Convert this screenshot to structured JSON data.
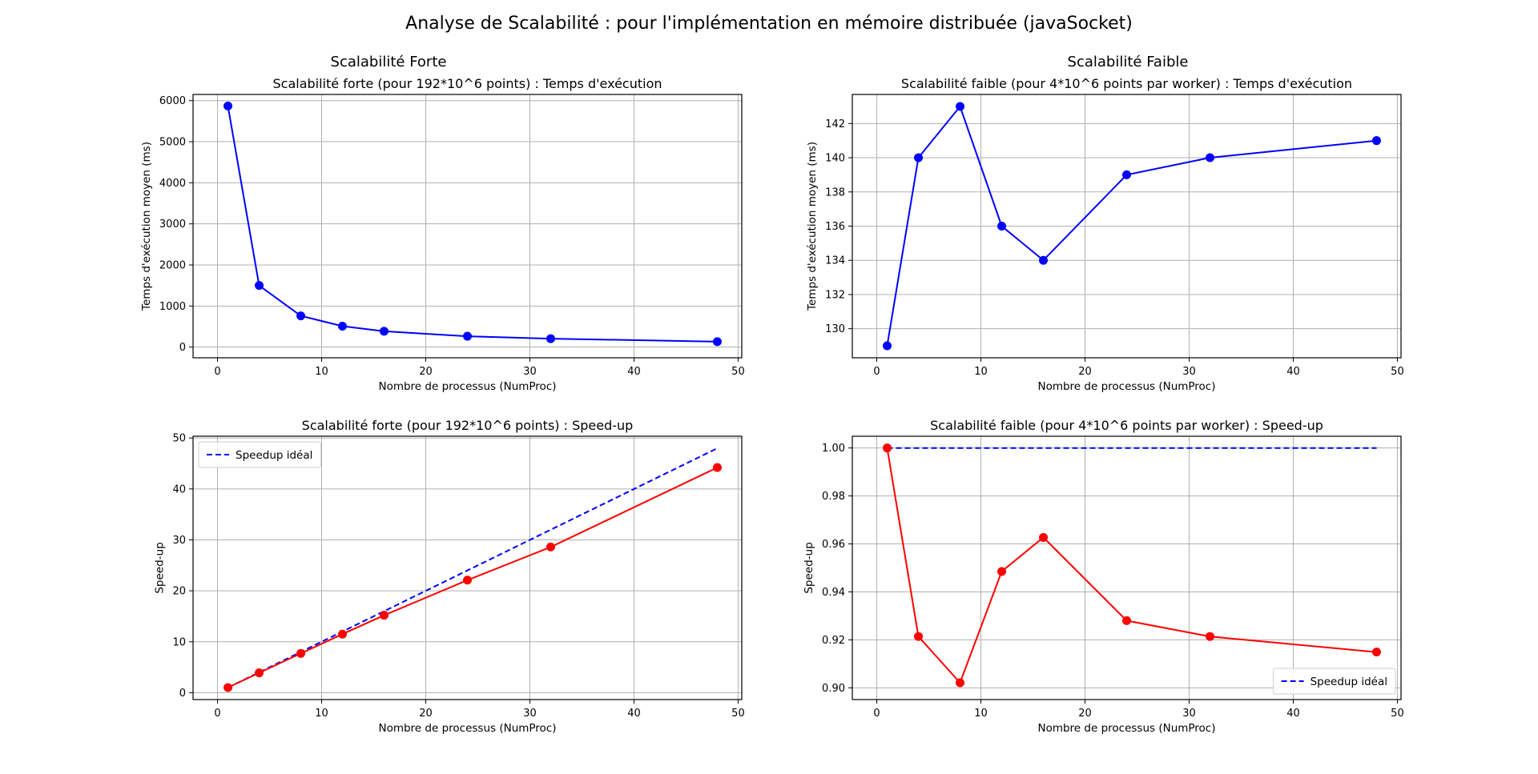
{
  "figure": {
    "title": "Analyse de Scalabilité : pour l'implémentation en mémoire distribuée (javaSocket)",
    "column_titles": [
      "Scalabilité Forte",
      "Scalabilité Faible"
    ]
  },
  "colors": {
    "measured_time": "#0000ff",
    "measured_speedup": "#ff0000",
    "ideal": "#0000ff",
    "grid": "#b0b0b0"
  },
  "chart_data": [
    {
      "id": "strong-time",
      "type": "line",
      "title": "Scalabilité forte (pour 192*10^6 points) : Temps d'exécution",
      "xlabel": "Nombre de processus (NumProc)",
      "ylabel": "Temps d'exécution moyen (ms)",
      "xlim": [
        -2.35,
        50.35
      ],
      "ylim": [
        -260,
        6150
      ],
      "xticks": [
        0,
        10,
        20,
        30,
        40,
        50
      ],
      "yticks": [
        0,
        1000,
        2000,
        3000,
        4000,
        5000,
        6000
      ],
      "grid": true,
      "legend": null,
      "series": [
        {
          "style": "solid-marker",
          "color": "#0000ff",
          "x": [
            1,
            4,
            8,
            12,
            16,
            24,
            32,
            48
          ],
          "y": [
            5870,
            1500,
            760,
            510,
            385,
            265,
            205,
            133
          ]
        }
      ]
    },
    {
      "id": "weak-time",
      "type": "line",
      "title": "Scalabilité faible (pour 4*10^6 points par worker) : Temps d'exécution",
      "xlabel": "Nombre de processus (NumProc)",
      "ylabel": "Temps d'exécution moyen (ms)",
      "xlim": [
        -2.35,
        50.35
      ],
      "ylim": [
        128.3,
        143.7
      ],
      "xticks": [
        0,
        10,
        20,
        30,
        40,
        50
      ],
      "yticks": [
        130,
        132,
        134,
        136,
        138,
        140,
        142
      ],
      "grid": true,
      "legend": null,
      "series": [
        {
          "style": "solid-marker",
          "color": "#0000ff",
          "x": [
            1,
            4,
            8,
            12,
            16,
            24,
            32,
            48
          ],
          "y": [
            129,
            140,
            143,
            136,
            134,
            139,
            140,
            141
          ]
        }
      ]
    },
    {
      "id": "strong-speedup",
      "type": "line",
      "title": "Scalabilité forte (pour 192*10^6 points) : Speed-up",
      "xlabel": "Nombre de processus (NumProc)",
      "ylabel": "Speed-up",
      "xlim": [
        -2.35,
        50.35
      ],
      "ylim": [
        -1.35,
        50.35
      ],
      "xticks": [
        0,
        10,
        20,
        30,
        40,
        50
      ],
      "yticks": [
        0,
        10,
        20,
        30,
        40,
        50
      ],
      "grid": true,
      "legend": "upper left",
      "series": [
        {
          "name": "Speedup idéal",
          "style": "dashed",
          "color": "#0000ff",
          "x": [
            1,
            4,
            8,
            12,
            16,
            24,
            32,
            48
          ],
          "y": [
            1,
            4,
            8,
            12,
            16,
            24,
            32,
            48
          ]
        },
        {
          "style": "solid-marker",
          "color": "#ff0000",
          "x": [
            1,
            4,
            8,
            12,
            16,
            24,
            32,
            48
          ],
          "y": [
            1.0,
            3.9,
            7.7,
            11.5,
            15.2,
            22.1,
            28.6,
            44.2
          ]
        }
      ]
    },
    {
      "id": "weak-speedup",
      "type": "line",
      "title": "Scalabilité faible (pour 4*10^6 points par worker) : Speed-up",
      "xlabel": "Nombre de processus (NumProc)",
      "ylabel": "Speed-up",
      "xlim": [
        -2.35,
        50.35
      ],
      "ylim": [
        0.8951,
        1.0049
      ],
      "xticks": [
        0,
        10,
        20,
        30,
        40,
        50
      ],
      "yticks": [
        0.9,
        0.92,
        0.94,
        0.96,
        0.98,
        1.0
      ],
      "ytick_decimals": 2,
      "grid": true,
      "legend": "lower right",
      "series": [
        {
          "name": "Speedup idéal",
          "style": "dashed",
          "color": "#0000ff",
          "x": [
            1,
            4,
            8,
            12,
            16,
            24,
            32,
            48
          ],
          "y": [
            1,
            1,
            1,
            1,
            1,
            1,
            1,
            1
          ]
        },
        {
          "style": "solid-marker",
          "color": "#ff0000",
          "x": [
            1,
            4,
            8,
            12,
            16,
            24,
            32,
            48
          ],
          "y": [
            1.0,
            0.9214,
            0.9021,
            0.9485,
            0.9627,
            0.928,
            0.9214,
            0.9149
          ]
        }
      ]
    }
  ]
}
